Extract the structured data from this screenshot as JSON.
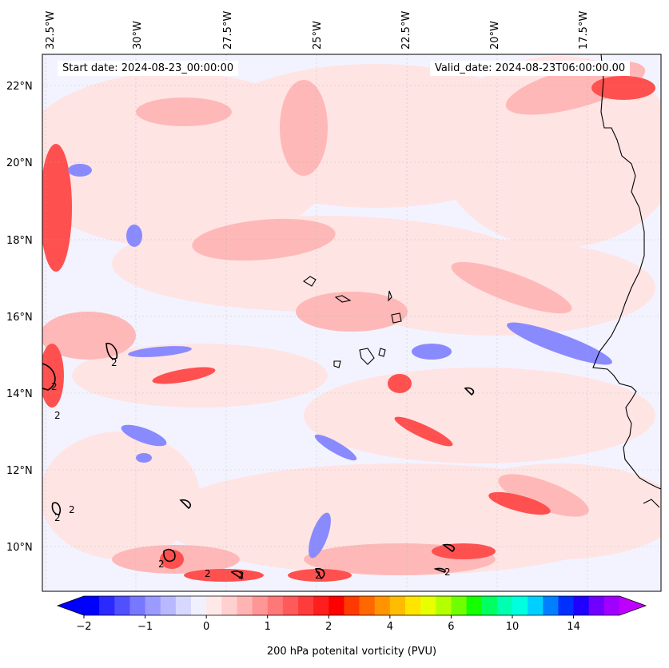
{
  "map": {
    "start_date_label": "Start date: 2024-08-23_00:00:00",
    "valid_date_label": "Valid_date: 2024-08-23T06:00:00.00",
    "longitude_labels": [
      "32.5°W",
      "30°W",
      "27.5°W",
      "25°W",
      "22.5°W",
      "20°W",
      "17.5°W"
    ],
    "latitude_labels": [
      "22°N",
      "20°N",
      "18°N",
      "16°N",
      "14°N",
      "12°N",
      "10°N"
    ],
    "contour_label": "2",
    "colors": {
      "land_outline": "#000000",
      "background_field": "#f3f3ff"
    }
  },
  "colorbar": {
    "title": "200 hPa potenital vorticity (PVU)",
    "tick_labels": [
      "−2",
      "−1",
      "0",
      "1",
      "2",
      "4",
      "6",
      "10",
      "14"
    ],
    "colors": [
      "#0000ff",
      "#2a2aff",
      "#5050ff",
      "#7878ff",
      "#9a9aff",
      "#b8b8ff",
      "#d8d8ff",
      "#f0f0ff",
      "#ffe8e8",
      "#ffd0d0",
      "#ffb4b4",
      "#ff9696",
      "#ff7878",
      "#ff5a5a",
      "#ff3c3c",
      "#ff1e1e",
      "#ff0000",
      "#ff3a00",
      "#ff6800",
      "#ff9400",
      "#ffbc00",
      "#ffe400",
      "#e8ff00",
      "#b4ff00",
      "#70ff00",
      "#14ff00",
      "#00ff60",
      "#00ffb0",
      "#00ffe0",
      "#00d0ff",
      "#0080ff",
      "#0030ff",
      "#2000ff",
      "#7000ff",
      "#a000ff"
    ],
    "extend_low_color": "#0000ff",
    "extend_high_color": "#c000ff"
  }
}
